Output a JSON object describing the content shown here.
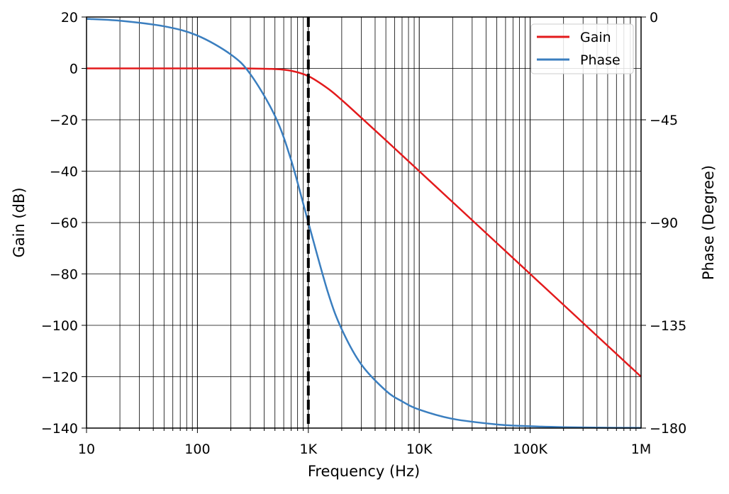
{
  "chart_data": {
    "type": "line",
    "xlabel": "Frequency (Hz)",
    "ylabel": "Gain (dB)",
    "y2label": "Phase (Degree)",
    "xscale": "log",
    "xlim": [
      10,
      1000000
    ],
    "ylim": [
      -140,
      20
    ],
    "y2lim": [
      -180,
      0
    ],
    "grid": true,
    "legend_position": "top-right",
    "x_ticks": [
      10,
      100,
      1000,
      10000,
      100000,
      1000000
    ],
    "x_tick_labels": [
      "10",
      "100",
      "1K",
      "10K",
      "100K",
      "1M"
    ],
    "y_ticks": [
      20,
      0,
      -20,
      -40,
      -60,
      -80,
      -100,
      -120,
      -140
    ],
    "y_tick_labels": [
      "20",
      "0",
      "−20",
      "−40",
      "−60",
      "−80",
      "−100",
      "−120",
      "−140"
    ],
    "y2_ticks": [
      0,
      -45,
      -90,
      -135,
      -180
    ],
    "y2_tick_labels": [
      "0",
      "−45",
      "−90",
      "−135",
      "−180"
    ],
    "vline": {
      "x": 1000,
      "style": "dashed",
      "color": "#000000"
    },
    "x": [
      10,
      20,
      50,
      100,
      200,
      300,
      500,
      700,
      1000,
      1500,
      2000,
      3000,
      5000,
      7000,
      10000,
      20000,
      50000,
      100000,
      200000,
      500000,
      1000000
    ],
    "series": [
      {
        "name": "Gain",
        "axis": "left",
        "color": "#e31a1c",
        "values": [
          0,
          0,
          0,
          0,
          -0.007,
          -0.035,
          -0.263,
          -0.934,
          -3.01,
          -7.83,
          -12.3,
          -19.19,
          -27.97,
          -33.81,
          -40.0,
          -52.04,
          -67.96,
          -80.0,
          -92.04,
          -107.96,
          -120.0
        ]
      },
      {
        "name": "Phase",
        "axis": "right",
        "color": "#3a7ebf",
        "values": [
          -0.81,
          -1.62,
          -4.06,
          -8.13,
          -16.41,
          -25.0,
          -43.3,
          -62.7,
          -90.0,
          -120.5,
          -136.7,
          -152.1,
          -163.6,
          -168.3,
          -171.9,
          -175.95,
          -178.4,
          -179.2,
          -179.6,
          -179.84,
          -179.92
        ]
      }
    ]
  }
}
